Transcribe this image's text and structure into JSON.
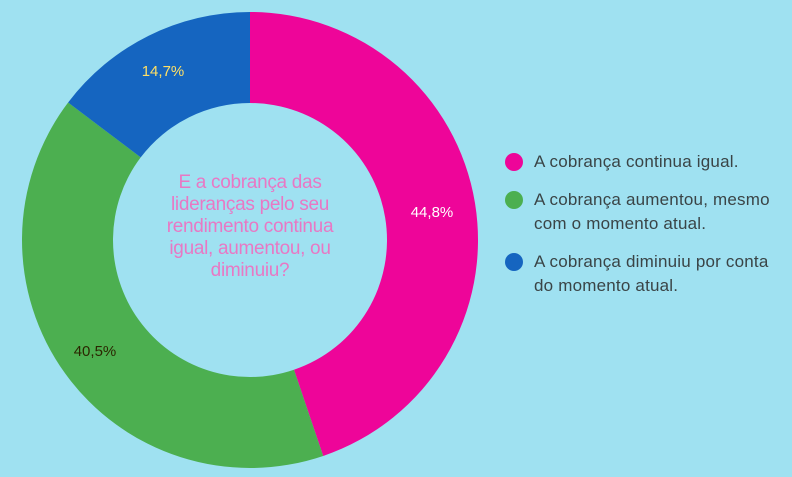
{
  "chart_data": {
    "type": "pie",
    "center_text": "E a cobrança das lideranças pelo seu rendimento continua igual, aumentou, ou diminuiu?",
    "series": [
      {
        "name": "A cobrança continua igual.",
        "value": 44.8,
        "label": "44,8%",
        "color": "#ee0599",
        "label_color": "#ffffff"
      },
      {
        "name": "A cobrança aumentou, mesmo com o momento atual.",
        "value": 40.5,
        "label": "40,5%",
        "color": "#4caf50",
        "label_color": "#2b2600"
      },
      {
        "name": "A cobrança diminuiu por conta do momento atual.",
        "value": 14.7,
        "label": "14,7%",
        "color": "#1565c0",
        "label_color": "#ffe066"
      }
    ],
    "legend_position": "right"
  }
}
